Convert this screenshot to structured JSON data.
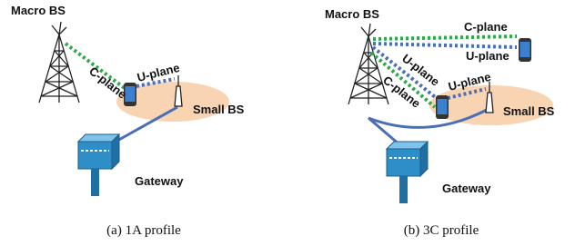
{
  "panels": [
    {
      "macro_label": "Macro BS",
      "link_labels": [
        "C-plane",
        "U-plane"
      ],
      "small_label": "Small BS",
      "gateway_label": "Gateway",
      "caption": "(a) 1A profile"
    },
    {
      "macro_label": "Macro BS",
      "link_labels": [
        "C-plane",
        "U-plane",
        "U-plane",
        "C-plane",
        "U-plane"
      ],
      "small_label": "Small BS",
      "gateway_label": "Gateway",
      "caption": "(b) 3C profile"
    }
  ]
}
